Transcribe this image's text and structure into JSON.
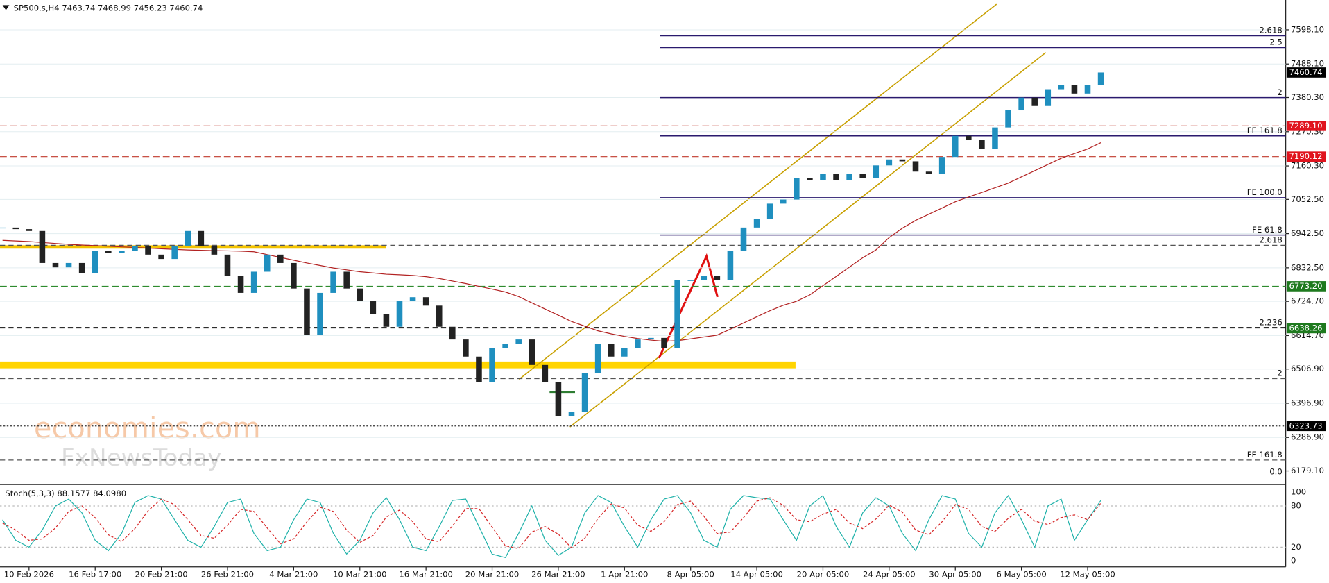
{
  "chart_data": {
    "type": "candlestick",
    "header": "SP500.s,H4  7463.74 7468.99 7456.23 7460.74",
    "watermark": [
      "economies.com",
      "FxNewsToday"
    ],
    "categories": [
      null,
      null,
      "10 Feb 2026",
      null,
      null,
      null,
      null,
      "16 Feb 17:00",
      null,
      null,
      null,
      null,
      "20 Feb 21:00",
      null,
      null,
      null,
      null,
      "26 Feb 21:00",
      null,
      null,
      null,
      null,
      "4 Mar 21:00",
      null,
      null,
      null,
      null,
      "10 Mar 21:00",
      null,
      null,
      null,
      null,
      "16 Mar 21:00",
      null,
      null,
      null,
      null,
      "20 Mar 21:00",
      null,
      null,
      null,
      null,
      "26 Mar 21:00",
      null,
      null,
      null,
      null,
      "1 Apr 21:00",
      null,
      null,
      null,
      null,
      "8 Apr 05:00",
      null,
      null,
      null,
      null,
      "14 Apr 05:00",
      null,
      null,
      null,
      null,
      "20 Apr 05:00",
      null,
      null,
      null,
      null,
      "24 Apr 05:00",
      null,
      null,
      null,
      null,
      "30 Apr 05:00",
      null,
      null,
      null,
      null,
      "6 May 05:00",
      null,
      null,
      null,
      null,
      "12 May 05:00",
      null
    ],
    "values": [
      6962,
      6957,
      6951,
      6848,
      6834,
      6848,
      6815,
      6888,
      6880,
      6888,
      6902,
      6875,
      6861,
      6902,
      6951,
      6902,
      6875,
      6807,
      6752,
      6820,
      6875,
      6848,
      6766,
      6616,
      6752,
      6820,
      6766,
      6725,
      6684,
      6643,
      6725,
      6738,
      6711,
      6643,
      6602,
      6547,
      6466,
      6575,
      6588,
      6602,
      6520,
      6466,
      6356,
      6370,
      6493,
      6588,
      6547,
      6575,
      6602,
      6607,
      6575,
      6793,
      6793,
      6807,
      6793,
      6888,
      6962,
      6989,
      7039,
      7052,
      7121,
      7115,
      7134,
      7115,
      7134,
      7121,
      7162,
      7181,
      7175,
      7142,
      7134,
      7189,
      7257,
      7243,
      7216,
      7284,
      7339,
      7380,
      7353,
      7407,
      7421,
      7393,
      7421,
      7460.74
    ],
    "up_color": "#1f8fbf",
    "down_color": "#222222",
    "ma": {
      "color": "#b22222",
      "values": [
        6921,
        6919,
        6917,
        6914,
        6911,
        6908,
        6906,
        6904,
        6902,
        6900,
        6898,
        6896,
        6894,
        6892,
        6890,
        6889,
        6888,
        6887,
        6886,
        6884,
        6875,
        6866,
        6857,
        6848,
        6840,
        6832,
        6826,
        6820,
        6816,
        6812,
        6810,
        6808,
        6804,
        6798,
        6790,
        6782,
        6773,
        6764,
        6755,
        6740,
        6720,
        6700,
        6680,
        6660,
        6645,
        6630,
        6620,
        6612,
        6605,
        6600,
        6596,
        6598,
        6604,
        6610,
        6616,
        6635,
        6655,
        6675,
        6695,
        6712,
        6725,
        6745,
        6775,
        6805,
        6835,
        6865,
        6890,
        6930,
        6960,
        6985,
        7005,
        7025,
        7045,
        7060,
        7075,
        7090,
        7105,
        7125,
        7145,
        7165,
        7185,
        7200,
        7215,
        7235
      ]
    },
    "ylim": [
      6138,
      7694
    ],
    "yticks": [
      {
        "value": 7598.1,
        "label": "7598.10"
      },
      {
        "value": 7488.1,
        "label": "7488.10"
      },
      {
        "value": 7380.3,
        "label": "7380.30"
      },
      {
        "value": 7270.3,
        "label": "7270.30"
      },
      {
        "value": 7160.3,
        "label": "7160.30"
      },
      {
        "value": 7052.5,
        "label": "7052.50"
      },
      {
        "value": 6942.5,
        "label": "6942.50"
      },
      {
        "value": 6832.5,
        "label": "6832.50"
      },
      {
        "value": 6724.7,
        "label": "6724.70"
      },
      {
        "value": 6614.7,
        "label": "6614.70"
      },
      {
        "value": 6506.9,
        "label": "6506.90"
      },
      {
        "value": 6396.9,
        "label": "6396.90"
      },
      {
        "value": 6286.9,
        "label": "6286.90"
      },
      {
        "value": 6179.1,
        "label": "6179.10"
      }
    ],
    "grid": true,
    "levels": [
      {
        "label": "2.618",
        "value": 7579,
        "style": "fib",
        "color": "#2a1a6e"
      },
      {
        "label": "2.5",
        "value": 7541,
        "style": "fib",
        "color": "#2a1a6e"
      },
      {
        "label": "2",
        "value": 7380,
        "style": "fib",
        "color": "#2a1a6e"
      },
      {
        "label": "FE 161.8",
        "value": 7257,
        "style": "fib",
        "color": "#2a1a6e"
      },
      {
        "label": "FE 100.0",
        "value": 7058,
        "style": "fib",
        "color": "#2a1a6e"
      },
      {
        "label": "FE 61.8",
        "value": 6938,
        "style": "fib",
        "color": "#2a1a6e"
      },
      {
        "label": "2.618",
        "value": 6905,
        "style": "dashed",
        "color": "#555555"
      },
      {
        "label": "2.236",
        "value": 6640,
        "style": "dashed",
        "color": "#111111"
      },
      {
        "label": "2",
        "value": 6476,
        "style": "dashed",
        "color": "#555555"
      },
      {
        "label": "FE 161.8",
        "value": 6214,
        "style": "dashed",
        "color": "#555555"
      },
      {
        "label": "0.0",
        "value": 6160,
        "style": "none",
        "color": "#555555"
      }
    ],
    "price_labels": [
      {
        "value": 7460.74,
        "label": "7460.74",
        "color": "#000000",
        "line": "none"
      },
      {
        "value": 7289.1,
        "label": "7289.10",
        "color": "#e0141e",
        "line": "#c0392b"
      },
      {
        "value": 7190.12,
        "label": "7190.12",
        "color": "#e0141e",
        "line": "#c0392b"
      },
      {
        "value": 6773.2,
        "label": "6773.20",
        "color": "#1e7a1e",
        "line": "#2e8b2e"
      },
      {
        "value": 6638.26,
        "label": "6638.26",
        "color": "#1e7a1e",
        "line": "none"
      },
      {
        "value": 6323.73,
        "label": "6323.73",
        "color": "#000000",
        "line": "#333333"
      }
    ],
    "stoch": {
      "label": "Stoch(5,3,3) 88.1577 84.0980",
      "ylim": [
        -8.6,
        108.6
      ],
      "yticks": [
        0,
        20,
        80,
        100
      ],
      "k_color": "#20b2aa",
      "d_color": "#d62728",
      "k": [
        60,
        30,
        20,
        45,
        80,
        90,
        70,
        30,
        15,
        40,
        85,
        95,
        90,
        60,
        30,
        20,
        50,
        85,
        90,
        40,
        15,
        20,
        60,
        90,
        85,
        40,
        10,
        30,
        70,
        92,
        60,
        20,
        15,
        50,
        88,
        90,
        50,
        10,
        5,
        40,
        80,
        30,
        8,
        20,
        70,
        95,
        85,
        50,
        20,
        60,
        90,
        95,
        70,
        30,
        20,
        75,
        95,
        92,
        90,
        60,
        30,
        80,
        95,
        50,
        20,
        70,
        92,
        80,
        40,
        15,
        60,
        95,
        90,
        40,
        20,
        70,
        95,
        60,
        20,
        80,
        90,
        30,
        60,
        88.1577
      ],
      "d": [
        55,
        45,
        30,
        32,
        48,
        72,
        80,
        63,
        38,
        28,
        47,
        73,
        90,
        82,
        60,
        37,
        33,
        52,
        75,
        72,
        48,
        25,
        32,
        57,
        78,
        72,
        45,
        27,
        37,
        64,
        74,
        57,
        32,
        28,
        51,
        76,
        76,
        49,
        22,
        18,
        42,
        50,
        39,
        19,
        33,
        62,
        83,
        77,
        52,
        43,
        57,
        82,
        87,
        65,
        40,
        42,
        63,
        87,
        92,
        81,
        60,
        57,
        68,
        75,
        55,
        47,
        61,
        81,
        71,
        45,
        38,
        57,
        82,
        75,
        50,
        43,
        62,
        75,
        58,
        53,
        63,
        67,
        60,
        84.098
      ]
    }
  }
}
